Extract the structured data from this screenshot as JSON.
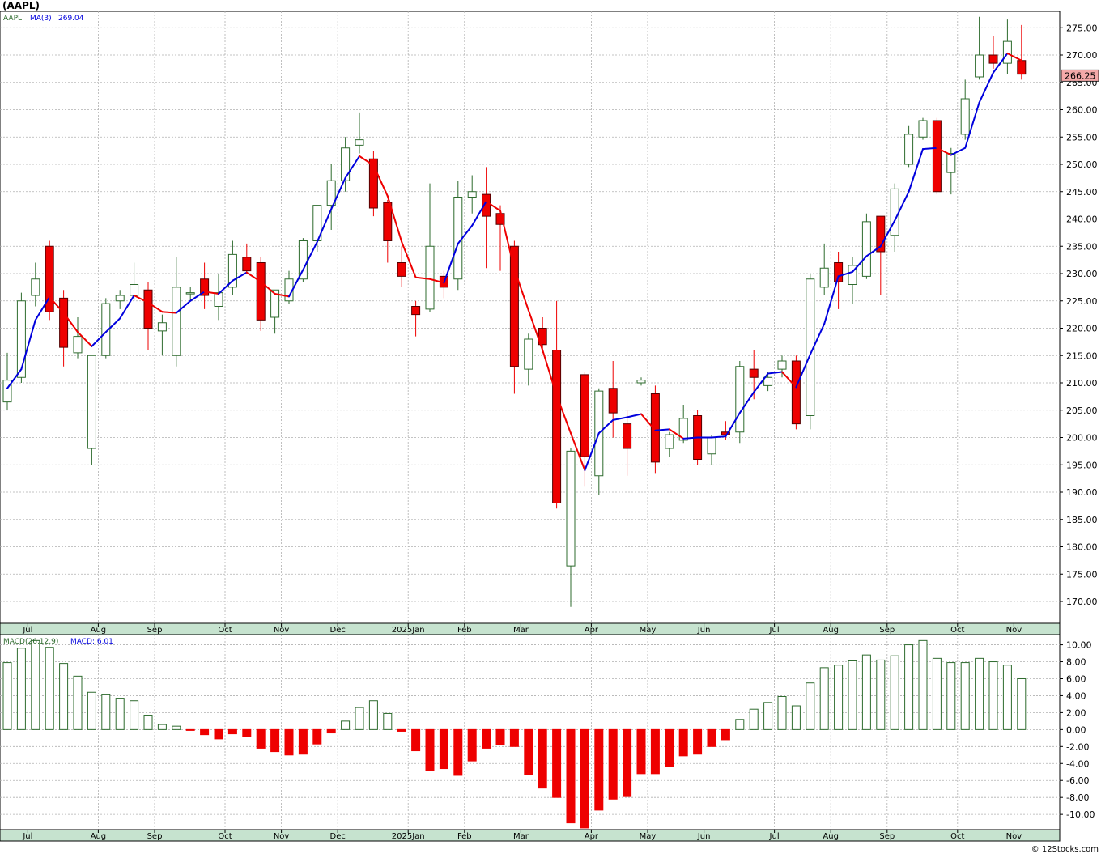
{
  "title": "(AAPL)",
  "watermark": "© 12Stocks.com",
  "price_panel": {
    "legend_symbol": "AAPL",
    "legend_ma": "MA(3)",
    "legend_ma_value": "269.04",
    "last_price_label": "266.25",
    "last_price": 266.25
  },
  "macd_panel": {
    "legend_params": "MACD(26,12,9)",
    "legend_value": "MACD: 6.01"
  },
  "colors": {
    "up": "#2e6b2e",
    "down": "#ee0000",
    "ma_up": "#0000dd",
    "ma_down": "#ee0000",
    "axis_band": "#c6e3cf",
    "grid": "#b0b0b0",
    "price_box": "#f4a9a9"
  },
  "month_labels": [
    "Jul",
    "Aug",
    "Sep",
    "Oct",
    "Nov",
    "Dec",
    "2025Jan",
    "Feb",
    "Mar",
    "Apr",
    "May",
    "Jun",
    "Jul",
    "Aug",
    "Sep",
    "Oct",
    "Nov"
  ],
  "chart_data": [
    {
      "type": "candlestick",
      "series_name": "AAPL",
      "ma_name": "MA(3)",
      "ylim": [
        166,
        278
      ],
      "yticks": [
        170,
        175,
        180,
        185,
        190,
        195,
        200,
        205,
        210,
        215,
        220,
        225,
        230,
        235,
        240,
        245,
        250,
        255,
        260,
        265,
        270,
        275
      ],
      "grid": true,
      "candles": [
        [
          206.5,
          215.5,
          205.0,
          210.5
        ],
        [
          211.0,
          226.5,
          210.0,
          225.0
        ],
        [
          226.0,
          232.0,
          224.0,
          229.0
        ],
        [
          235.0,
          236.0,
          221.5,
          223.0
        ],
        [
          225.5,
          227.0,
          213.0,
          216.5
        ],
        [
          215.5,
          222.0,
          214.5,
          218.5
        ],
        [
          198.0,
          215.0,
          195.0,
          215.0
        ],
        [
          215.0,
          225.5,
          214.5,
          224.5
        ],
        [
          225.0,
          227.0,
          223.5,
          226.0
        ],
        [
          226.0,
          232.0,
          225.0,
          228.0
        ],
        [
          227.0,
          228.5,
          216.0,
          220.0
        ],
        [
          219.5,
          222.5,
          215.0,
          221.0
        ],
        [
          215.0,
          233.0,
          213.0,
          227.5
        ],
        [
          226.5,
          227.5,
          225.0,
          226.5
        ],
        [
          229.0,
          232.0,
          223.5,
          226.0
        ],
        [
          224.0,
          230.0,
          221.5,
          226.5
        ],
        [
          227.5,
          236.0,
          226.0,
          233.5
        ],
        [
          233.0,
          235.5,
          230.0,
          230.5
        ],
        [
          232.0,
          233.0,
          219.5,
          221.5
        ],
        [
          222.0,
          227.0,
          219.0,
          227.0
        ],
        [
          225.0,
          230.5,
          224.5,
          229.0
        ],
        [
          229.0,
          236.5,
          228.5,
          236.0
        ],
        [
          236.0,
          242.5,
          234.0,
          242.5
        ],
        [
          242.5,
          250.0,
          238.0,
          247.0
        ],
        [
          247.0,
          255.0,
          245.0,
          253.0
        ],
        [
          253.5,
          259.5,
          252.0,
          254.5
        ],
        [
          251.0,
          252.5,
          240.5,
          242.0
        ],
        [
          243.0,
          243.5,
          232.0,
          236.0
        ],
        [
          232.0,
          235.0,
          227.5,
          229.5
        ],
        [
          224.0,
          225.0,
          218.5,
          222.5
        ],
        [
          223.5,
          246.5,
          223.0,
          235.0
        ],
        [
          229.5,
          230.5,
          225.5,
          227.5
        ],
        [
          229.0,
          247.0,
          227.0,
          244.0
        ],
        [
          244.0,
          248.0,
          241.0,
          245.0
        ],
        [
          244.5,
          249.5,
          231.0,
          240.5
        ],
        [
          241.0,
          242.5,
          230.5,
          239.0
        ],
        [
          235.0,
          236.0,
          208.0,
          213.0
        ],
        [
          212.5,
          219.0,
          209.5,
          218.0
        ],
        [
          220.0,
          222.0,
          215.5,
          217.0
        ],
        [
          216.0,
          225.0,
          187.0,
          188.0
        ],
        [
          176.5,
          198.0,
          169.0,
          197.5
        ],
        [
          211.5,
          212.0,
          191.0,
          196.5
        ],
        [
          193.0,
          209.0,
          189.5,
          208.5
        ],
        [
          209.0,
          214.0,
          200.0,
          204.5
        ],
        [
          202.5,
          205.0,
          193.0,
          198.0
        ],
        [
          210.0,
          211.0,
          209.5,
          210.5
        ],
        [
          208.0,
          209.5,
          193.5,
          195.5
        ],
        [
          198.0,
          201.0,
          196.5,
          200.5
        ],
        [
          199.5,
          206.0,
          199.0,
          203.5
        ],
        [
          204.0,
          205.0,
          195.0,
          196.0
        ],
        [
          197.0,
          200.5,
          195.0,
          200.0
        ],
        [
          201.0,
          203.0,
          199.5,
          200.5
        ],
        [
          201.0,
          214.0,
          199.0,
          213.0
        ],
        [
          212.5,
          216.0,
          207.0,
          211.0
        ],
        [
          209.5,
          212.0,
          208.5,
          211.0
        ],
        [
          212.5,
          215.0,
          211.0,
          214.0
        ],
        [
          214.0,
          215.0,
          201.5,
          202.5
        ],
        [
          204.0,
          230.0,
          201.5,
          229.0
        ],
        [
          227.5,
          235.5,
          226.0,
          231.0
        ],
        [
          232.0,
          234.0,
          223.5,
          228.5
        ],
        [
          228.0,
          233.0,
          224.5,
          231.5
        ],
        [
          229.5,
          241.0,
          229.0,
          239.5
        ],
        [
          240.5,
          240.5,
          226.0,
          234.0
        ],
        [
          237.0,
          246.5,
          234.0,
          245.5
        ],
        [
          250.0,
          257.0,
          249.5,
          255.5
        ],
        [
          255.0,
          258.5,
          254.5,
          258.0
        ],
        [
          258.0,
          258.5,
          244.5,
          245.0
        ],
        [
          248.5,
          253.0,
          244.5,
          252.0
        ],
        [
          255.5,
          265.5,
          254.5,
          262.0
        ],
        [
          266.0,
          277.0,
          265.5,
          270.0
        ],
        [
          270.0,
          273.5,
          267.5,
          268.5
        ],
        [
          268.5,
          276.5,
          266.5,
          272.5
        ],
        [
          269.0,
          275.5,
          265.5,
          266.5
        ]
      ],
      "ma3": [
        209.0,
        212.5,
        221.5,
        225.7,
        222.8,
        219.3,
        216.7,
        219.3,
        221.8,
        226.0,
        224.7,
        223.0,
        222.8,
        225.0,
        226.7,
        226.3,
        228.7,
        230.2,
        228.5,
        226.3,
        225.8,
        230.7,
        235.8,
        241.8,
        247.5,
        251.5,
        249.8,
        244.2,
        235.8,
        229.3,
        229.0,
        228.3,
        235.5,
        238.8,
        243.2,
        241.5,
        230.8,
        223.3,
        216.0,
        207.7,
        200.8,
        194.0,
        200.8,
        203.2,
        203.7,
        204.3,
        201.3,
        201.5,
        199.8,
        200.0,
        200.0,
        200.2,
        204.5,
        208.3,
        211.7,
        212.0,
        209.2,
        215.2,
        220.8,
        229.5,
        230.3,
        233.2,
        235.0,
        239.7,
        245.0,
        252.8,
        253.0,
        251.7,
        253.0,
        261.3,
        266.8,
        270.3,
        269.0
      ]
    },
    {
      "type": "bar",
      "series_name": "MACD(26,12,9)",
      "ylim": [
        -11.8,
        11.2
      ],
      "yticks": [
        -10,
        -8,
        -6,
        -4,
        -2,
        0,
        2,
        4,
        6,
        8,
        10
      ],
      "grid": true,
      "values": [
        7.9,
        9.6,
        10.5,
        9.7,
        7.8,
        6.3,
        4.4,
        4.1,
        3.7,
        3.4,
        1.7,
        0.6,
        0.4,
        -0.1,
        -0.6,
        -1.1,
        -0.5,
        -0.8,
        -2.2,
        -2.6,
        -3.0,
        -2.9,
        -1.7,
        -0.4,
        1.0,
        2.6,
        3.4,
        1.9,
        -0.2,
        -2.5,
        -4.8,
        -4.6,
        -5.4,
        -3.7,
        -2.2,
        -1.8,
        -2.0,
        -5.3,
        -6.9,
        -8.0,
        -11.0,
        -11.6,
        -9.5,
        -8.2,
        -7.9,
        -5.2,
        -5.2,
        -4.4,
        -3.1,
        -2.9,
        -2.0,
        -1.2,
        1.2,
        2.4,
        3.2,
        3.9,
        2.8,
        5.5,
        7.3,
        7.6,
        8.1,
        8.8,
        8.2,
        8.7,
        10.0,
        10.5,
        8.4,
        7.9,
        7.9,
        8.4,
        8.0,
        7.6,
        6.0
      ]
    }
  ]
}
